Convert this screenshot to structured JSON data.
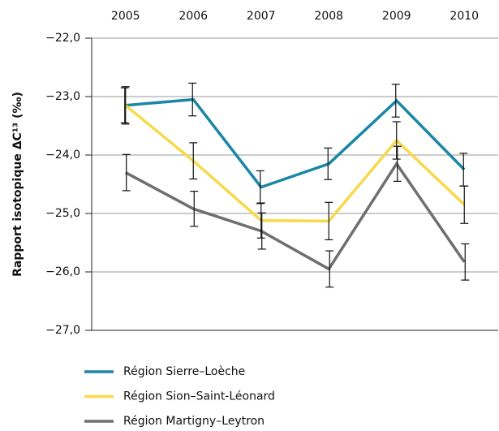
{
  "chart_data": {
    "type": "line",
    "y_label": "Rapport isotopique ΔC¹³ (‰)",
    "categories": [
      "2005",
      "2006",
      "2007",
      "2008",
      "2009",
      "2010"
    ],
    "series": [
      {
        "name": "Région Sierre–Loèche",
        "color": "#1b86a6",
        "values": [
          -23.15,
          -23.05,
          -24.55,
          -24.15,
          -23.07,
          -24.25
        ],
        "errors": [
          0.3,
          0.28,
          0.28,
          0.27,
          0.28,
          0.28
        ]
      },
      {
        "name": "Région Sion–Saint-Léonard",
        "color": "#f7d94a",
        "values": [
          -23.15,
          -24.1,
          -25.12,
          -25.13,
          -23.75,
          -24.85
        ],
        "errors": [
          0.32,
          0.31,
          0.3,
          0.32,
          0.32,
          0.32
        ]
      },
      {
        "name": "Région Martigny–Leytron",
        "color": "#6e6f71",
        "values": [
          -24.3,
          -24.92,
          -25.3,
          -25.95,
          -24.15,
          -25.83
        ],
        "errors": [
          0.31,
          0.3,
          0.31,
          0.31,
          0.3,
          0.31
        ]
      }
    ],
    "ylim": [
      -27,
      -22
    ],
    "yticks": [
      {
        "value": -22,
        "label": "−22,0"
      },
      {
        "value": -23,
        "label": "−23,0"
      },
      {
        "value": -24,
        "label": "−24,0"
      },
      {
        "value": -25,
        "label": "−25,0"
      },
      {
        "value": -26,
        "label": "−26,0"
      },
      {
        "value": -27,
        "label": "−27,0"
      }
    ],
    "grid": true,
    "legend": "bottom"
  }
}
